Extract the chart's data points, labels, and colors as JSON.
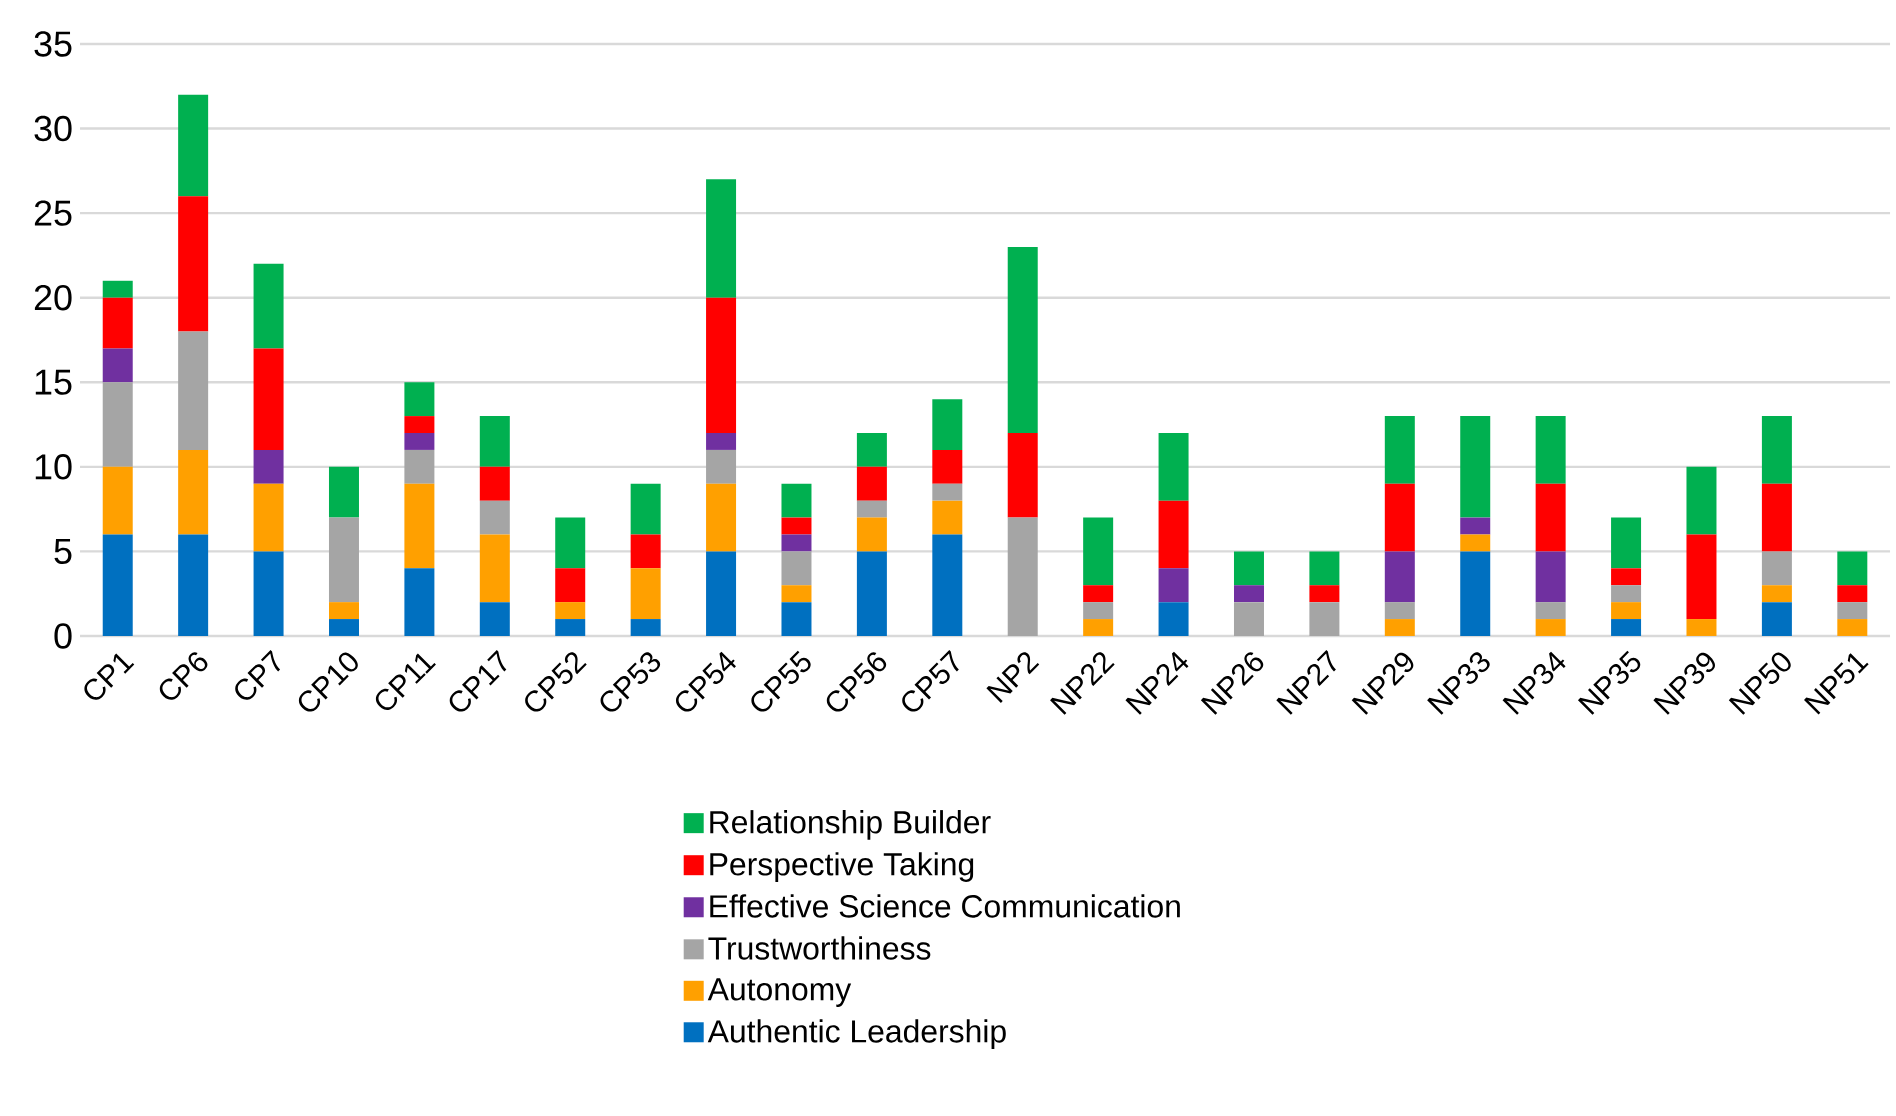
{
  "chart_data": {
    "type": "bar",
    "stacked": true,
    "categories": [
      "CP1",
      "CP6",
      "CP7",
      "CP10",
      "CP11",
      "CP17",
      "CP52",
      "CP53",
      "CP54",
      "CP55",
      "CP56",
      "CP57",
      "NP2",
      "NP22",
      "NP24",
      "NP26",
      "NP27",
      "NP29",
      "NP33",
      "NP34",
      "NP35",
      "NP39",
      "NP50",
      "NP51"
    ],
    "series": [
      {
        "name": "Authentic Leadership",
        "color": "#0070c0",
        "values": [
          6,
          6,
          5,
          1,
          4,
          2,
          1,
          1,
          5,
          2,
          5,
          6,
          0,
          0,
          2,
          0,
          0,
          0,
          5,
          0,
          1,
          0,
          2,
          0
        ]
      },
      {
        "name": "Autonomy",
        "color": "#ffa000",
        "values": [
          4,
          5,
          4,
          1,
          5,
          4,
          1,
          3,
          4,
          1,
          2,
          2,
          0,
          1,
          0,
          0,
          0,
          1,
          1,
          1,
          1,
          1,
          1,
          1
        ]
      },
      {
        "name": "Trustworthiness",
        "color": "#a5a5a5",
        "values": [
          5,
          7,
          0,
          5,
          2,
          2,
          0,
          0,
          2,
          2,
          1,
          1,
          7,
          1,
          0,
          2,
          2,
          1,
          0,
          1,
          1,
          0,
          2,
          1
        ]
      },
      {
        "name": "Effective Science Communication",
        "color": "#7030a0",
        "values": [
          2,
          0,
          2,
          0,
          1,
          0,
          0,
          0,
          1,
          1,
          0,
          0,
          0,
          0,
          2,
          1,
          0,
          3,
          1,
          3,
          0,
          0,
          0,
          0
        ]
      },
      {
        "name": "Perspective Taking",
        "color": "#ff0000",
        "values": [
          3,
          8,
          6,
          0,
          1,
          2,
          2,
          2,
          8,
          1,
          2,
          2,
          5,
          1,
          4,
          0,
          1,
          4,
          0,
          4,
          1,
          5,
          4,
          1
        ]
      },
      {
        "name": "Relationship Builder",
        "color": "#00b050",
        "values": [
          1,
          6,
          5,
          3,
          2,
          3,
          3,
          3,
          7,
          2,
          2,
          3,
          11,
          4,
          4,
          2,
          2,
          4,
          6,
          4,
          3,
          4,
          4,
          2
        ]
      }
    ],
    "ylim": [
      0,
      35
    ],
    "yticks": [
      0,
      5,
      10,
      15,
      20,
      25,
      30,
      35
    ],
    "grid": "y",
    "legend": "bottom"
  }
}
